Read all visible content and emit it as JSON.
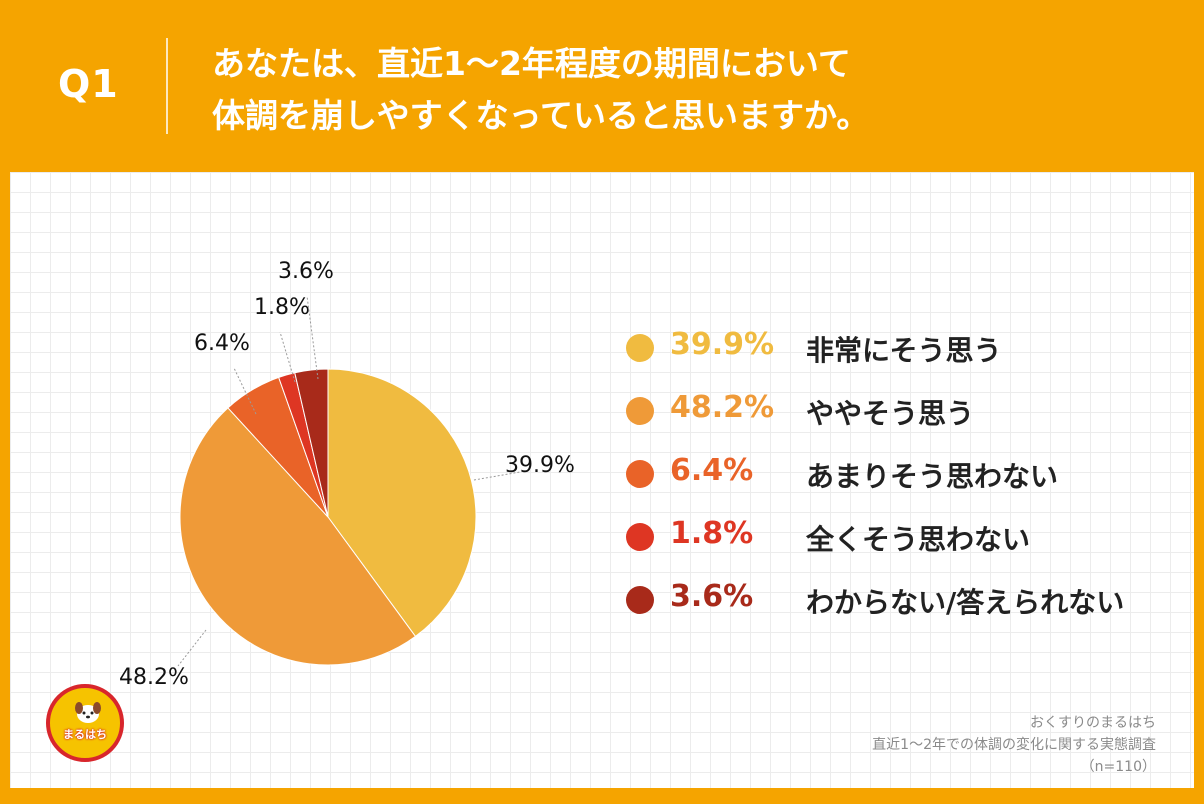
{
  "header": {
    "q_label": "Q1",
    "question_line1": "あなたは、直近1〜2年程度の期間において",
    "question_line2": "体調を崩しやすくなっていると思いますか。"
  },
  "colors": {
    "background": "#F5A400",
    "slices": [
      "#F0BB40",
      "#EF9A38",
      "#E96328",
      "#DE3623",
      "#A82A1A"
    ]
  },
  "chart_data": {
    "type": "pie",
    "title": "あなたは、直近1〜2年程度の期間において体調を崩しやすくなっていると思いますか。",
    "start_angle_deg": 0,
    "direction": "clockwise",
    "slices": [
      {
        "label": "非常にそう思う",
        "value": 39.9,
        "display": "39.9%"
      },
      {
        "label": "ややそう思う",
        "value": 48.2,
        "display": "48.2%"
      },
      {
        "label": "あまりそう思わない",
        "value": 6.4,
        "display": "6.4%"
      },
      {
        "label": "全くそう思わない",
        "value": 1.8,
        "display": "1.8%"
      },
      {
        "label": "わからない/答えられない",
        "value": 3.6,
        "display": "3.6%"
      }
    ],
    "legend_position": "right"
  },
  "source": {
    "line1": "おくすりのまるはち",
    "line2": "直近1〜2年での体調の変化に関する実態調査",
    "line3": "（n=110）"
  },
  "logo": {
    "text": "まるはち",
    "icon": "dog-mascot-icon"
  }
}
